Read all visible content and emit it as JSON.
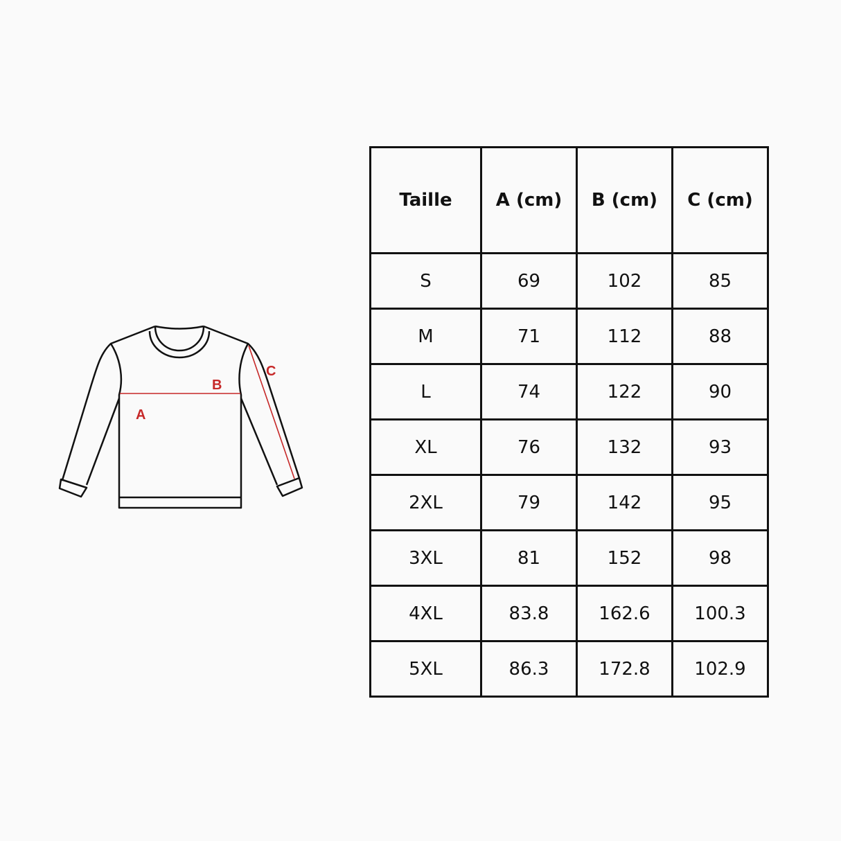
{
  "diagram": {
    "labels": {
      "a": "A",
      "b": "B",
      "c": "C"
    },
    "accent_color": "#c62828",
    "line_color": "#111111"
  },
  "table": {
    "headers": [
      "Taille",
      "A (cm)",
      "B (cm)",
      "C (cm)"
    ],
    "rows": [
      [
        "S",
        "69",
        "102",
        "85"
      ],
      [
        "M",
        "71",
        "112",
        "88"
      ],
      [
        "L",
        "74",
        "122",
        "90"
      ],
      [
        "XL",
        "76",
        "132",
        "93"
      ],
      [
        "2XL",
        "79",
        "142",
        "95"
      ],
      [
        "3XL",
        "81",
        "152",
        "98"
      ],
      [
        "4XL",
        "83.8",
        "162.6",
        "100.3"
      ],
      [
        "5XL",
        "86.3",
        "172.8",
        "102.9"
      ]
    ]
  }
}
